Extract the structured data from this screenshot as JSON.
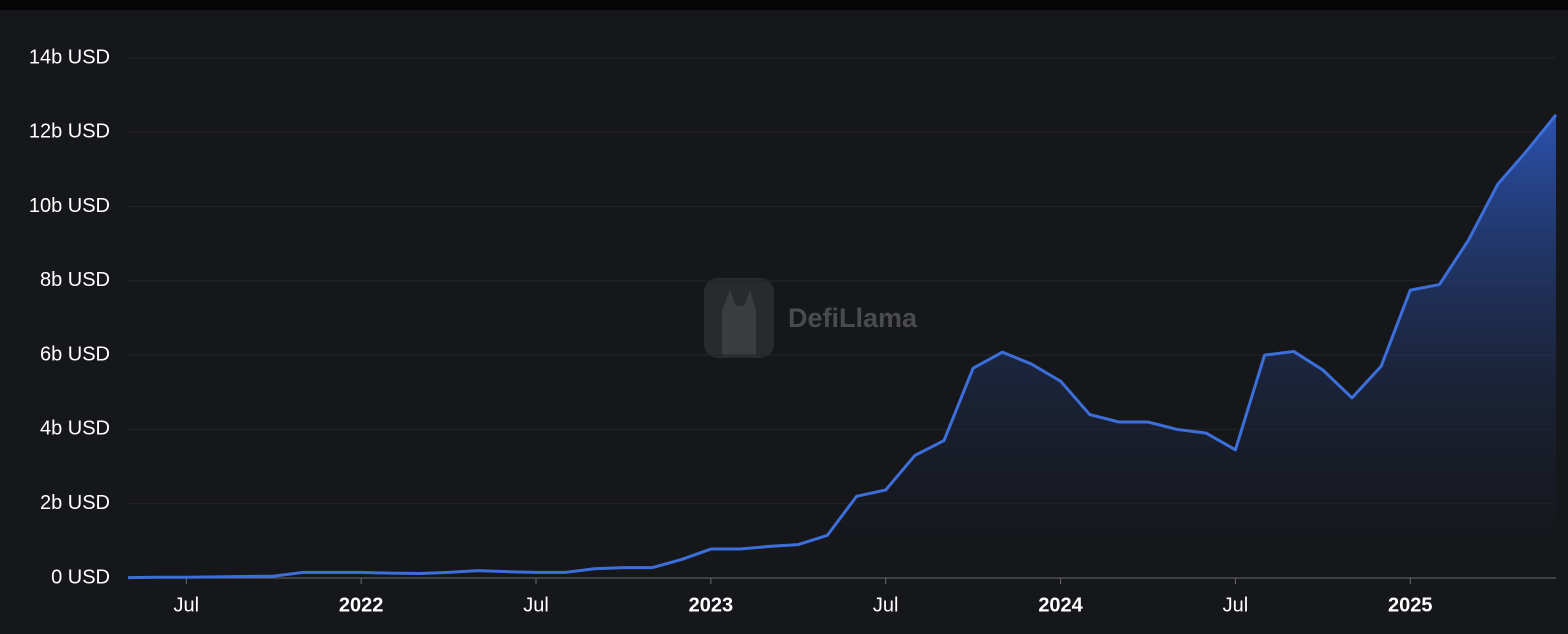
{
  "chart_data": {
    "type": "area",
    "watermark": "DefiLlama",
    "x": [
      "2021-05",
      "2021-06",
      "2021-07",
      "2021-08",
      "2021-09",
      "2021-10",
      "2021-11",
      "2021-12",
      "2022-01",
      "2022-02",
      "2022-03",
      "2022-04",
      "2022-05",
      "2022-06",
      "2022-07",
      "2022-08",
      "2022-09",
      "2022-10",
      "2022-11",
      "2022-12",
      "2023-01",
      "2023-02",
      "2023-03",
      "2023-04",
      "2023-05",
      "2023-06",
      "2023-07",
      "2023-08",
      "2023-09",
      "2023-10",
      "2023-11",
      "2023-12",
      "2024-01",
      "2024-02",
      "2024-03",
      "2024-04",
      "2024-05",
      "2024-06",
      "2024-07",
      "2024-08",
      "2024-09",
      "2024-10",
      "2024-11",
      "2024-12",
      "2025-01",
      "2025-02",
      "2025-03",
      "2025-04",
      "2025-05",
      "2025-06"
    ],
    "series": [
      {
        "color": "#3d6fdb",
        "values": [
          0.01,
          0.02,
          0.02,
          0.03,
          0.04,
          0.05,
          0.15,
          0.15,
          0.15,
          0.13,
          0.12,
          0.15,
          0.2,
          0.17,
          0.15,
          0.15,
          0.25,
          0.28,
          0.28,
          0.5,
          0.78,
          0.78,
          0.85,
          0.9,
          1.15,
          2.2,
          2.37,
          3.3,
          3.7,
          5.65,
          6.08,
          5.76,
          5.3,
          4.4,
          4.2,
          4.2,
          4.0,
          3.9,
          3.45,
          6.0,
          6.1,
          5.6,
          4.85,
          5.7,
          7.75,
          7.9,
          9.1,
          10.6,
          11.5,
          12.47
        ]
      }
    ],
    "xlim": [
      "2021-05",
      "2025-06"
    ],
    "xticks": [
      {
        "value": "2021-07",
        "label": "Jul"
      },
      {
        "value": "2022-01",
        "label": "2022"
      },
      {
        "value": "2022-07",
        "label": "Jul"
      },
      {
        "value": "2023-01",
        "label": "2023"
      },
      {
        "value": "2023-07",
        "label": "Jul"
      },
      {
        "value": "2024-01",
        "label": "2024"
      },
      {
        "value": "2024-07",
        "label": "Jul"
      },
      {
        "value": "2025-01",
        "label": "2025"
      }
    ],
    "ylim": [
      0,
      14
    ],
    "yticks": [
      {
        "value": 0,
        "label": "0 USD"
      },
      {
        "value": 2,
        "label": "2b USD"
      },
      {
        "value": 4,
        "label": "4b USD"
      },
      {
        "value": 6,
        "label": "6b USD"
      },
      {
        "value": 8,
        "label": "8b USD"
      },
      {
        "value": 10,
        "label": "10b USD"
      },
      {
        "value": 12,
        "label": "12b USD"
      },
      {
        "value": 14,
        "label": "14b USD"
      }
    ],
    "grid": true
  }
}
